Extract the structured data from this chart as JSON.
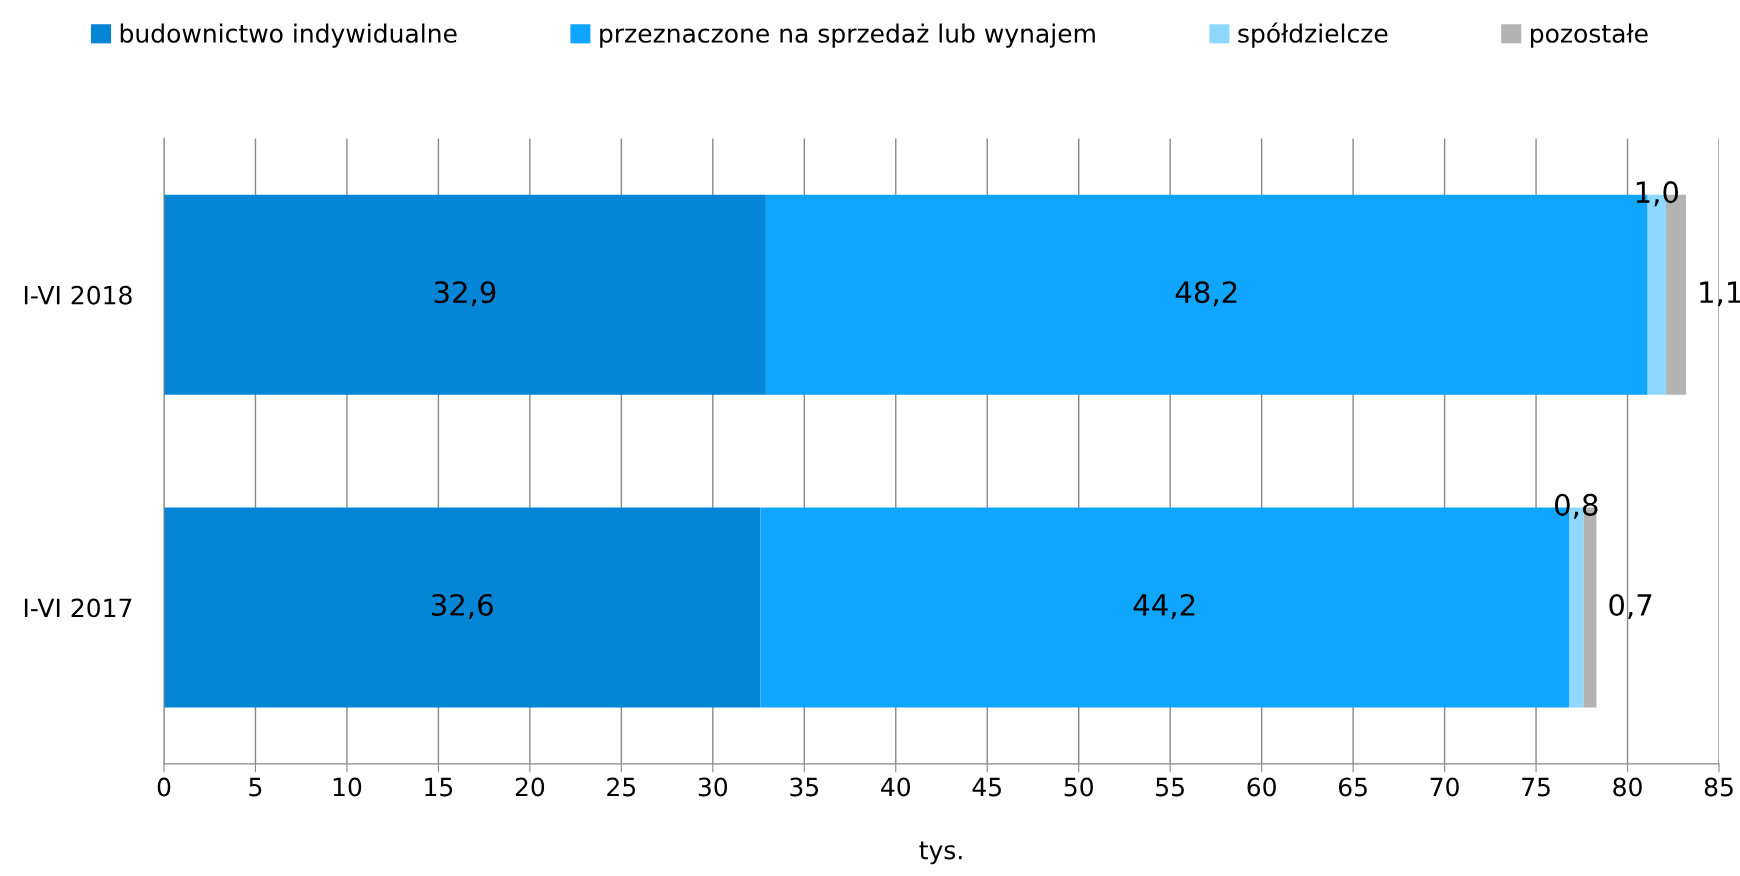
{
  "chart_data": {
    "type": "bar",
    "orientation": "horizontal",
    "stacked": true,
    "categories": [
      "I-VI 2018",
      "I-VI 2017"
    ],
    "series": [
      {
        "name": "budownictwo indywidualne",
        "color": "#0585d6",
        "values": [
          32.9,
          32.6
        ],
        "value_labels": [
          "32,9",
          "32,6"
        ]
      },
      {
        "name": "przeznaczone na sprzedaż lub wynajem",
        "color": "#10a5fe",
        "values": [
          48.2,
          44.2
        ],
        "value_labels": [
          "48,2",
          "44,2"
        ]
      },
      {
        "name": "spółdzielcze",
        "color": "#8ed8ff",
        "values": [
          1.0,
          0.8
        ],
        "value_labels": [
          "1,0",
          "0,8"
        ]
      },
      {
        "name": "pozostałe",
        "color": "#b3b3b3",
        "values": [
          1.1,
          0.7
        ],
        "value_labels": [
          "1,1",
          "0,7"
        ]
      }
    ],
    "xlabel": "tys.",
    "xlim": [
      0,
      85
    ],
    "xticks": [
      0,
      5,
      10,
      15,
      20,
      25,
      30,
      35,
      40,
      45,
      50,
      55,
      60,
      65,
      70,
      75,
      80,
      85
    ],
    "grid": "x",
    "legend": "top"
  }
}
